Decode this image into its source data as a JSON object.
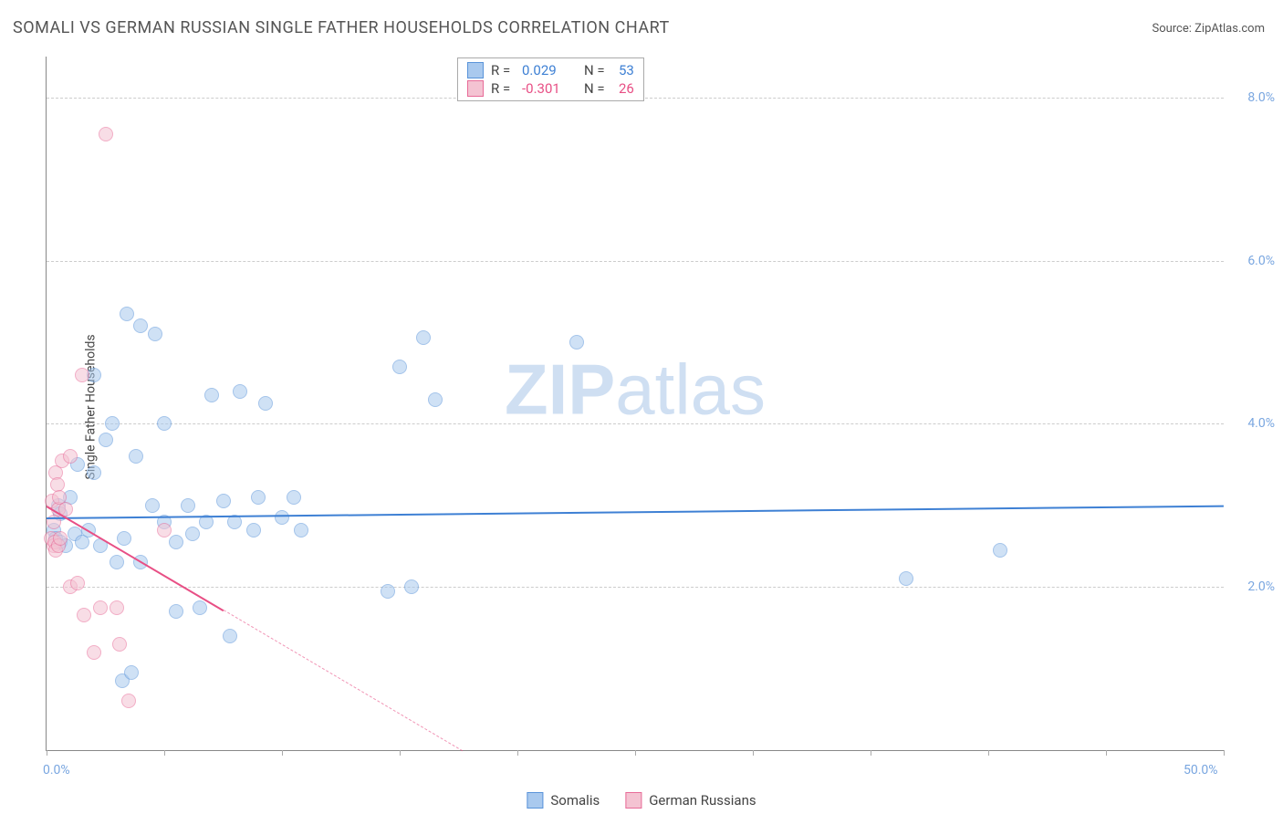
{
  "title": "SOMALI VS GERMAN RUSSIAN SINGLE FATHER HOUSEHOLDS CORRELATION CHART",
  "source_label": "Source: ZipAtlas.com",
  "ylabel": "Single Father Households",
  "watermark_bold": "ZIP",
  "watermark_light": "atlas",
  "chart": {
    "type": "scatter",
    "xlim": [
      0,
      50
    ],
    "ylim": [
      0,
      8.5
    ],
    "x_tick_label_min": "0.0%",
    "x_tick_label_max": "50.0%",
    "x_minorticks": [
      0,
      5,
      10,
      15,
      20,
      25,
      30,
      35,
      40,
      45,
      50
    ],
    "y_gridlines": [
      2.0,
      4.0,
      6.0,
      8.0
    ],
    "y_tick_labels": [
      "2.0%",
      "4.0%",
      "6.0%",
      "8.0%"
    ],
    "background_color": "#ffffff",
    "grid_color": "#cccccc",
    "axis_color": "#888888",
    "marker_radius": 8,
    "series": [
      {
        "name": "Somalis",
        "color_fill": "#a9c9ee",
        "color_stroke": "#5a94da",
        "fill_opacity": 0.55,
        "r_value": "0.029",
        "n_value": "53",
        "trend": {
          "y_at_x0": 2.85,
          "y_at_xmax": 3.0,
          "color": "#3e80d4"
        },
        "points": [
          [
            0.3,
            2.7
          ],
          [
            0.4,
            2.6
          ],
          [
            0.5,
            3.0
          ],
          [
            0.6,
            2.55
          ],
          [
            0.6,
            2.9
          ],
          [
            0.8,
            2.5
          ],
          [
            1.0,
            3.1
          ],
          [
            1.2,
            2.65
          ],
          [
            1.3,
            3.5
          ],
          [
            1.5,
            2.55
          ],
          [
            1.8,
            2.7
          ],
          [
            2.0,
            3.4
          ],
          [
            2.0,
            4.6
          ],
          [
            2.3,
            2.5
          ],
          [
            2.5,
            3.8
          ],
          [
            2.8,
            4.0
          ],
          [
            3.0,
            2.3
          ],
          [
            3.2,
            0.85
          ],
          [
            3.3,
            2.6
          ],
          [
            3.4,
            5.35
          ],
          [
            3.6,
            0.95
          ],
          [
            3.8,
            3.6
          ],
          [
            4.0,
            5.2
          ],
          [
            4.0,
            2.3
          ],
          [
            4.5,
            3.0
          ],
          [
            4.6,
            5.1
          ],
          [
            5.0,
            4.0
          ],
          [
            5.0,
            2.8
          ],
          [
            5.5,
            2.55
          ],
          [
            5.5,
            1.7
          ],
          [
            6.0,
            3.0
          ],
          [
            6.2,
            2.65
          ],
          [
            6.5,
            1.75
          ],
          [
            6.8,
            2.8
          ],
          [
            7.0,
            4.35
          ],
          [
            7.5,
            3.05
          ],
          [
            7.8,
            1.4
          ],
          [
            8.0,
            2.8
          ],
          [
            8.2,
            4.4
          ],
          [
            8.8,
            2.7
          ],
          [
            9.0,
            3.1
          ],
          [
            9.3,
            4.25
          ],
          [
            10.0,
            2.85
          ],
          [
            10.5,
            3.1
          ],
          [
            10.8,
            2.7
          ],
          [
            14.5,
            1.95
          ],
          [
            15.0,
            4.7
          ],
          [
            16.0,
            5.05
          ],
          [
            16.5,
            4.3
          ],
          [
            22.5,
            5.0
          ],
          [
            36.5,
            2.1
          ],
          [
            40.5,
            2.45
          ],
          [
            15.5,
            2.0
          ]
        ]
      },
      {
        "name": "German Russians",
        "color_fill": "#f4c3d2",
        "color_stroke": "#e86b98",
        "fill_opacity": 0.55,
        "r_value": "-0.301",
        "n_value": "26",
        "trend": {
          "y_at_x0": 3.0,
          "y_at_xmax": -5.5,
          "color": "#e84f85",
          "solid_until_x": 7.5
        },
        "points": [
          [
            0.2,
            2.6
          ],
          [
            0.25,
            3.05
          ],
          [
            0.3,
            2.5
          ],
          [
            0.3,
            2.8
          ],
          [
            0.35,
            2.55
          ],
          [
            0.4,
            3.4
          ],
          [
            0.4,
            2.45
          ],
          [
            0.45,
            3.25
          ],
          [
            0.5,
            2.5
          ],
          [
            0.5,
            2.95
          ],
          [
            0.55,
            3.1
          ],
          [
            0.6,
            2.6
          ],
          [
            0.65,
            3.55
          ],
          [
            0.8,
            2.95
          ],
          [
            1.0,
            2.0
          ],
          [
            1.0,
            3.6
          ],
          [
            1.3,
            2.05
          ],
          [
            1.5,
            4.6
          ],
          [
            1.6,
            1.65
          ],
          [
            2.0,
            1.2
          ],
          [
            2.3,
            1.75
          ],
          [
            2.5,
            7.55
          ],
          [
            3.0,
            1.75
          ],
          [
            3.1,
            1.3
          ],
          [
            3.5,
            0.6
          ],
          [
            5.0,
            2.7
          ]
        ]
      }
    ]
  },
  "legend_top": {
    "r_label": "R =",
    "n_label": "N ="
  },
  "legend_bottom": [
    {
      "label": "Somalis",
      "fill": "#a9c9ee",
      "stroke": "#5a94da"
    },
    {
      "label": "German Russians",
      "fill": "#f4c3d2",
      "stroke": "#e86b98"
    }
  ]
}
